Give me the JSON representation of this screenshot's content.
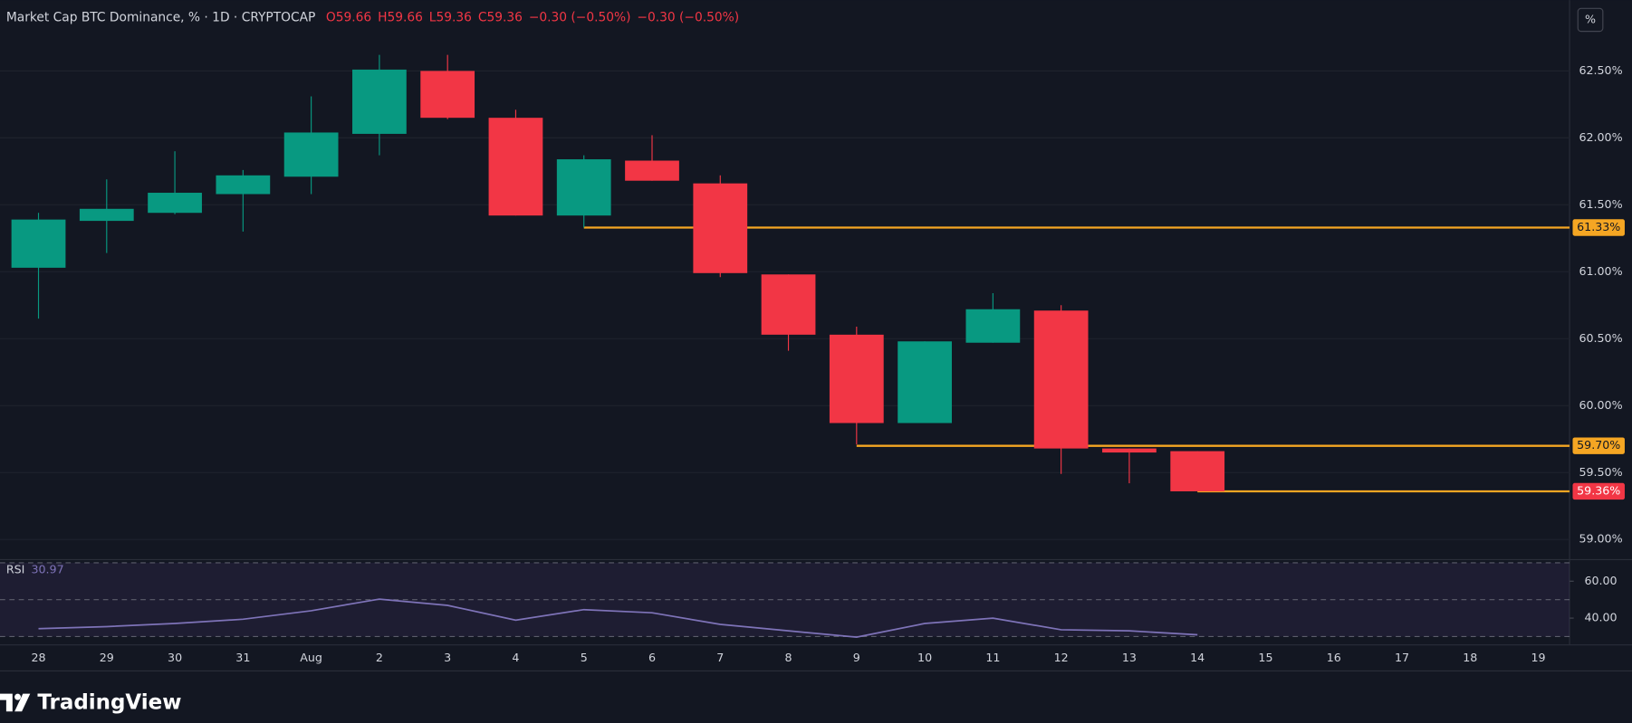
{
  "chart_data": {
    "type": "candlestick",
    "title": "Market Cap BTC Dominance, % · 1D · CRYPTOCAP",
    "legend_values": [
      "O59.66",
      "H59.66",
      "L59.36",
      "C59.36",
      "−0.30 (−0.50%)",
      "−0.30 (−0.50%)"
    ],
    "unit_button": "%",
    "categories": [
      "28",
      "29",
      "30",
      "31",
      "Aug",
      "2",
      "3",
      "4",
      "5",
      "6",
      "7",
      "8",
      "9",
      "10",
      "11",
      "12",
      "13",
      "14",
      "15",
      "16",
      "17",
      "18",
      "19"
    ],
    "open": [
      61.03,
      61.38,
      61.44,
      61.58,
      61.71,
      62.03,
      62.5,
      62.15,
      61.42,
      61.83,
      61.66,
      60.98,
      60.53,
      59.87,
      60.47,
      60.71,
      59.68,
      59.66,
      null,
      null,
      null,
      null,
      null
    ],
    "high": [
      61.44,
      61.69,
      61.9,
      61.76,
      62.31,
      62.62,
      62.62,
      62.21,
      61.87,
      62.02,
      61.72,
      60.98,
      60.59,
      60.48,
      60.84,
      60.75,
      59.68,
      59.66,
      null,
      null,
      null,
      null,
      null
    ],
    "low": [
      60.65,
      61.14,
      61.43,
      61.3,
      61.58,
      61.87,
      62.14,
      61.42,
      61.33,
      61.68,
      60.96,
      60.41,
      59.71,
      59.87,
      60.47,
      59.49,
      59.42,
      59.36,
      null,
      null,
      null,
      null,
      null
    ],
    "close": [
      61.39,
      61.47,
      61.59,
      61.72,
      62.04,
      62.51,
      62.15,
      61.42,
      61.84,
      61.68,
      60.99,
      60.53,
      59.87,
      60.48,
      60.72,
      59.68,
      59.65,
      59.36,
      null,
      null,
      null,
      null,
      null
    ],
    "up_color": "#089981",
    "down_color": "#f23645",
    "ylim": [
      58.85,
      62.99
    ],
    "yticks": [
      {
        "value": 59.0,
        "label": "59.00%"
      },
      {
        "value": 59.5,
        "label": "59.50%"
      },
      {
        "value": 60.0,
        "label": "60.00%"
      },
      {
        "value": 60.5,
        "label": "60.50%"
      },
      {
        "value": 61.0,
        "label": "61.00%"
      },
      {
        "value": 61.5,
        "label": "61.50%"
      },
      {
        "value": 62.0,
        "label": "62.00%"
      },
      {
        "value": 62.5,
        "label": "62.50%"
      }
    ],
    "grid": true,
    "levels": [
      {
        "value": 61.33,
        "label": "61.33%",
        "from": "5",
        "color": "#f5a623"
      },
      {
        "value": 59.7,
        "label": "59.70%",
        "from": "9",
        "color": "#f5a623"
      },
      {
        "value": 59.36,
        "label": "59.36%",
        "from": "14",
        "color": "#f5a623",
        "label_color": "#f23645"
      }
    ],
    "rsi": {
      "name": "RSI",
      "value_label": "30.97",
      "color": "#7e73b8",
      "values": [
        34.3,
        35.4,
        37.1,
        39.4,
        44.0,
        50.3,
        46.9,
        38.9,
        44.6,
        42.9,
        36.6,
        33.1,
        29.7,
        37.1,
        40.0,
        33.7,
        33.1,
        30.97,
        null,
        null,
        null,
        null,
        null
      ],
      "ylim": [
        25.5,
        71.7
      ],
      "yticks": [
        {
          "value": 40,
          "label": "40.00"
        },
        {
          "value": 60,
          "label": "60.00"
        }
      ],
      "bands": [
        70,
        50,
        30
      ]
    },
    "brand": "TradingView"
  }
}
